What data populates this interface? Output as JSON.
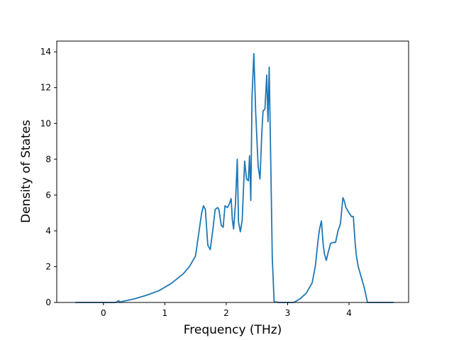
{
  "chart_data": {
    "type": "line",
    "title": "",
    "xlabel": "Frequency (THz)",
    "ylabel": "Density of States",
    "xlim": [
      -0.76,
      4.97
    ],
    "ylim": [
      0,
      14.6
    ],
    "xticks": [
      0,
      1,
      2,
      3,
      4
    ],
    "yticks": [
      0,
      2,
      4,
      6,
      8,
      10,
      12,
      14
    ],
    "grid": false,
    "legend": "none",
    "series": [
      {
        "color": "#1f77b4",
        "x": [
          -0.45,
          0.0,
          0.2,
          0.25,
          0.27,
          0.3,
          0.5,
          0.7,
          0.9,
          1.1,
          1.3,
          1.4,
          1.5,
          1.55,
          1.6,
          1.63,
          1.66,
          1.7,
          1.74,
          1.78,
          1.82,
          1.86,
          1.88,
          1.92,
          1.95,
          1.98,
          2.02,
          2.05,
          2.08,
          2.1,
          2.12,
          2.15,
          2.18,
          2.2,
          2.23,
          2.26,
          2.3,
          2.33,
          2.36,
          2.38,
          2.4,
          2.42,
          2.45,
          2.48,
          2.52,
          2.55,
          2.58,
          2.6,
          2.63,
          2.66,
          2.68,
          2.7,
          2.73,
          2.75,
          2.78,
          2.85,
          3.0,
          3.1,
          3.2,
          3.3,
          3.35,
          3.4,
          3.45,
          3.5,
          3.52,
          3.55,
          3.58,
          3.6,
          3.63,
          3.66,
          3.7,
          3.74,
          3.78,
          3.82,
          3.86,
          3.9,
          3.92,
          3.95,
          4.0,
          4.04,
          4.07,
          4.1,
          4.12,
          4.15,
          4.2,
          4.25,
          4.3,
          4.4,
          4.5,
          4.72
        ],
        "y": [
          0,
          0,
          0,
          0.1,
          0.0,
          0.05,
          0.2,
          0.4,
          0.65,
          1.05,
          1.6,
          2.0,
          2.6,
          3.8,
          5.0,
          5.4,
          5.2,
          3.2,
          2.95,
          4.0,
          5.2,
          5.3,
          5.2,
          4.3,
          4.2,
          5.4,
          5.3,
          5.5,
          5.8,
          4.6,
          4.1,
          5.5,
          8.0,
          4.5,
          3.95,
          4.6,
          7.9,
          6.9,
          6.8,
          8.2,
          5.7,
          11.5,
          13.9,
          10.6,
          7.6,
          6.9,
          9.5,
          10.7,
          10.8,
          12.7,
          10.1,
          13.15,
          6.8,
          2.5,
          0.05,
          0,
          0,
          0,
          0.2,
          0.5,
          0.8,
          1.1,
          2.0,
          3.6,
          4.1,
          4.55,
          3.2,
          2.7,
          2.35,
          2.8,
          3.3,
          3.35,
          3.35,
          4.0,
          4.4,
          5.85,
          5.7,
          5.3,
          5.0,
          4.8,
          4.8,
          3.3,
          2.6,
          2.0,
          1.4,
          0.8,
          0.0,
          0.0,
          0.0,
          0.0
        ]
      }
    ]
  }
}
